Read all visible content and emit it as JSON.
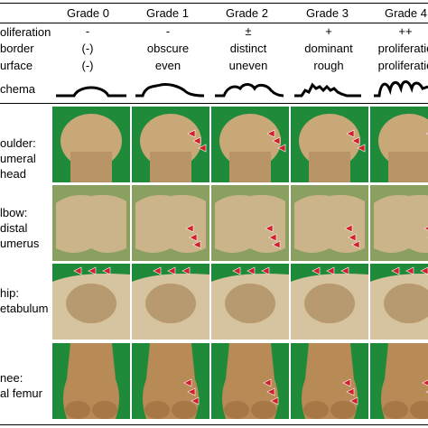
{
  "grades": [
    "Grade 0",
    "Grade 1",
    "Grade 2",
    "Grade 3",
    "Grade 4"
  ],
  "criteria": [
    {
      "label": "oliferation",
      "values": [
        "-",
        "-",
        "±",
        "+",
        "++"
      ]
    },
    {
      "label": "border",
      "values": [
        "(-)",
        "obscure",
        "distinct",
        "dominant",
        "proliferatio"
      ]
    },
    {
      "label": "urface",
      "values": [
        "(-)",
        "even",
        "uneven",
        "rough",
        "proliferatio"
      ]
    }
  ],
  "schema_label": "chema",
  "regions": [
    {
      "lines": [
        "oulder:",
        "umeral",
        "head"
      ]
    },
    {
      "lines": [
        "lbow:",
        "distal",
        "umerus"
      ]
    },
    {
      "lines": [
        "hip:",
        "etabulum"
      ]
    },
    {
      "lines": [
        "nee:",
        "al femur"
      ]
    }
  ],
  "colors": {
    "background_green": "#1f8a3a",
    "arrow": "#d0202a",
    "bone": "#c9a877"
  }
}
